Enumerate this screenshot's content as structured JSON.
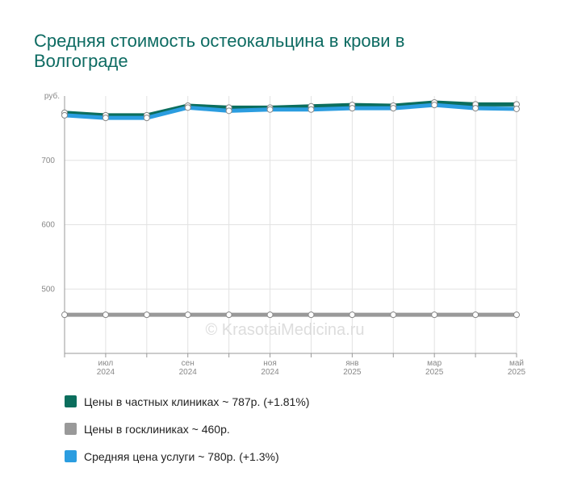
{
  "chart_data": {
    "type": "line",
    "title": "Средняя стоимость остеокальцина в крови в Волгограде",
    "y_label": "руб.",
    "watermark": "© KrasotaiMedicina.ru",
    "categories": [
      null,
      "июл 2024",
      null,
      "сен 2024",
      null,
      "ноя 2024",
      null,
      "янв 2025",
      null,
      "мар 2025",
      null,
      "май 2025"
    ],
    "series": [
      {
        "name": "Цены в частных клиниках ~ 787р. (+1.81%)",
        "color": "#0b6e5d",
        "values": [
          774,
          770,
          770,
          785,
          782,
          782,
          784,
          786,
          785,
          790,
          787,
          787
        ]
      },
      {
        "name": "Цены в госклиниках ~ 460р.",
        "color": "#999999",
        "values": [
          460,
          460,
          460,
          460,
          460,
          460,
          460,
          460,
          460,
          460,
          460,
          460
        ]
      },
      {
        "name": "Средняя цена услуги ~ 780р. (+1.3%)",
        "color": "#2b9de0",
        "values": [
          770,
          766,
          766,
          782,
          777,
          779,
          779,
          781,
          781,
          786,
          781,
          780
        ]
      }
    ],
    "ylim": [
      400,
      800
    ],
    "yticks": [
      500,
      600,
      700
    ],
    "grid": true
  }
}
